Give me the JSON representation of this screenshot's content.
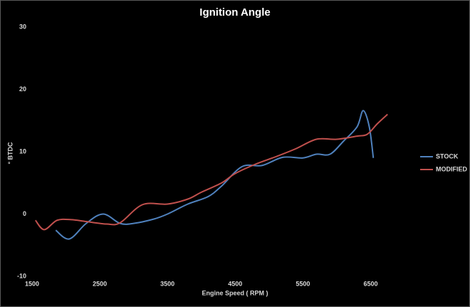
{
  "chart_data": {
    "type": "line",
    "title": "Ignition Angle",
    "x_label": "Engine Speed ( RPM )",
    "y_label": "° BTDC",
    "xlim": [
      1500,
      7000
    ],
    "xticks": [
      1500,
      2500,
      3500,
      4500,
      5500,
      6500
    ],
    "ylim": [
      -10,
      30
    ],
    "yticks": [
      -10,
      0,
      10,
      20,
      30
    ],
    "grid": false,
    "legend": "right",
    "series": [
      {
        "name": "STOCK",
        "color": "#4f81bd",
        "x": [
          1850,
          2050,
          2300,
          2550,
          2800,
          3000,
          3300,
          3500,
          3800,
          4100,
          4300,
          4600,
          4900,
          5200,
          5500,
          5700,
          5900,
          6100,
          6300,
          6390,
          6480,
          6540
        ],
        "values": [
          -2.6,
          -4,
          -1.5,
          0,
          -1.5,
          -1.5,
          -0.8,
          0,
          1.6,
          2.8,
          4.5,
          7.6,
          7.8,
          9.1,
          9.0,
          9.6,
          9.6,
          11.7,
          14,
          16.6,
          14,
          9
        ]
      },
      {
        "name": "MODIFIED",
        "color": "#c0504d",
        "x": [
          1550,
          1680,
          1870,
          2080,
          2300,
          2600,
          2800,
          3130,
          3500,
          3800,
          4000,
          4300,
          4500,
          4800,
          5100,
          5400,
          5700,
          6000,
          6300,
          6450,
          6600,
          6750
        ],
        "values": [
          -1,
          -2.5,
          -1,
          -0.9,
          -1.2,
          -1.6,
          -1.4,
          1.5,
          1.6,
          2.4,
          3.5,
          5,
          6.5,
          8,
          9.2,
          10.5,
          12,
          12,
          12.5,
          12.8,
          14.5,
          16
        ]
      }
    ]
  }
}
